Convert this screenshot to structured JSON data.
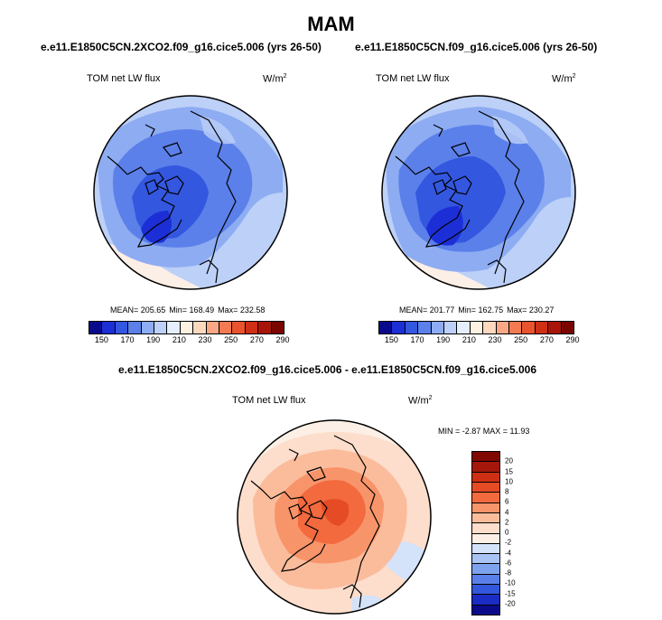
{
  "figure": {
    "season": "MAM",
    "field_label": "TOM net LW flux",
    "units_base": "W/m",
    "units_exp": "2"
  },
  "panel_left": {
    "case_title": "e.e11.E1850C5CN.2XCO2.f09_g16.cice5.006 (yrs 26-50)",
    "mean_text": "MEAN= 205.65",
    "min_text": "Min= 168.49",
    "max_text": "Max= 232.58"
  },
  "panel_right": {
    "case_title": "e.e11.E1850C5CN.f09_g16.cice5.006 (yrs 26-50)",
    "mean_text": "MEAN= 201.77",
    "min_text": "Min= 162.75",
    "max_text": "Max= 230.27"
  },
  "panel_diff": {
    "case_title": "e.e11.E1850C5CN.2XCO2.f09_g16.cice5.006 - e.e11.E1850C5CN.f09_g16.cice5.006",
    "minmax_text": "MIN =  -2.87 MAX =  11.93"
  },
  "colorbar_abs": {
    "tick_labels": [
      "150",
      "170",
      "190",
      "210",
      "230",
      "250",
      "270",
      "290"
    ],
    "colors": [
      "#0a0a8c",
      "#1c2fd6",
      "#3457e0",
      "#5b80ea",
      "#8eacf2",
      "#bcd0f8",
      "#e4eefc",
      "#fdf1e4",
      "#fcd8be",
      "#fba886",
      "#f47a52",
      "#e9542c",
      "#cf2f14",
      "#a81508",
      "#7a0500"
    ]
  },
  "colorbar_diff": {
    "tick_labels": [
      "20",
      "15",
      "10",
      "8",
      "6",
      "4",
      "2",
      "0",
      "-2",
      "-4",
      "-6",
      "-8",
      "-10",
      "-15",
      "-20"
    ],
    "colors": [
      "#800800",
      "#a5170a",
      "#cd2f14",
      "#e54b24",
      "#f26a3e",
      "#f8946a",
      "#fbbc9c",
      "#fdddcb",
      "#fcefe6",
      "#d4e2fa",
      "#a9c3f4",
      "#7ea3ee",
      "#5a7fe8",
      "#3257dc",
      "#1a2cc4",
      "#0b0a8a"
    ]
  }
}
